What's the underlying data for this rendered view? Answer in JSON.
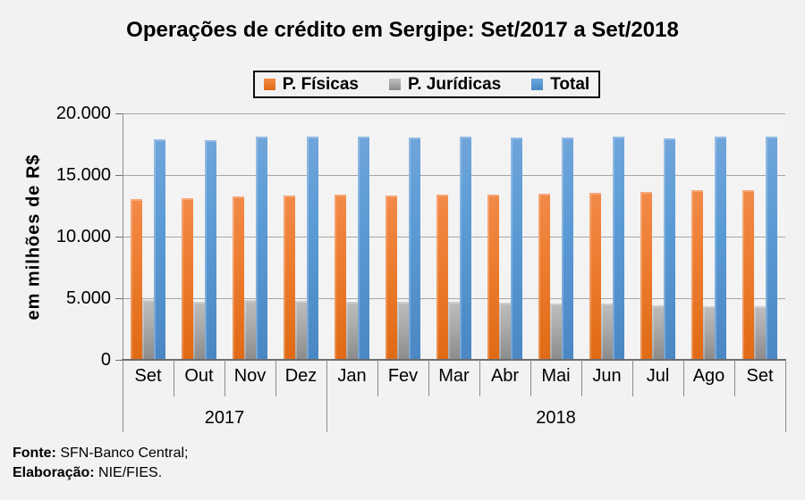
{
  "footer": {
    "lines": [
      {
        "label": "Fonte:",
        "text": " SFN-Banco Central;"
      },
      {
        "label": "Elaboração:",
        "text": " NIE/FIES."
      }
    ]
  },
  "chart_data": {
    "type": "bar",
    "title": "Operações de crédito em Sergipe: Set/2017 a Set/2018",
    "categories": [
      "Set",
      "Out",
      "Nov",
      "Dez",
      "Jan",
      "Fev",
      "Mar",
      "Abr",
      "Mai",
      "Jun",
      "Jul",
      "Ago",
      "Set"
    ],
    "year_groups": [
      {
        "label": "2017",
        "months": 4
      },
      {
        "label": "2018",
        "months": 9
      }
    ],
    "series": [
      {
        "name": "P. Físicas",
        "color": "#ED7D31",
        "values": [
          13050,
          13150,
          13250,
          13350,
          13400,
          13350,
          13400,
          13400,
          13450,
          13550,
          13600,
          13750,
          13800
        ]
      },
      {
        "name": "P. Jurídicas",
        "color": "#A6A6A6",
        "values": [
          4850,
          4700,
          4850,
          4750,
          4700,
          4700,
          4700,
          4650,
          4600,
          4550,
          4400,
          4350,
          4350
        ]
      },
      {
        "name": "Total",
        "color": "#5B9BD5",
        "values": [
          17900,
          17850,
          18100,
          18100,
          18100,
          18050,
          18100,
          18050,
          18050,
          18100,
          18000,
          18100,
          18150
        ]
      }
    ],
    "xlabel": "",
    "ylabel": "em milhões de R$",
    "ylim": [
      0,
      20000
    ],
    "y_tick_step": 5000,
    "y_tick_labels": [
      "0",
      "5.000",
      "10.000",
      "15.000",
      "20.000"
    ],
    "grid": true,
    "legend_position": "top",
    "plot_bg": "#F3F3F3",
    "page_bg": "#F2F2F2",
    "gridline_color": "#A6A6A6",
    "axis_color": "#6E6E6E"
  }
}
